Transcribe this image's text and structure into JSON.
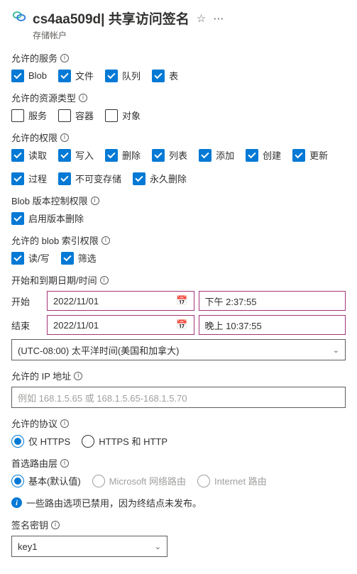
{
  "header": {
    "account_id": "cs4aa509d",
    "page_title": "共享访问签名",
    "subtitle": "存储帐户"
  },
  "services": {
    "label": "允许的服务",
    "items": [
      {
        "label": "Blob",
        "checked": true
      },
      {
        "label": "文件",
        "checked": true
      },
      {
        "label": "队列",
        "checked": true
      },
      {
        "label": "表",
        "checked": true
      }
    ]
  },
  "resource_types": {
    "label": "允许的资源类型",
    "items": [
      {
        "label": "服务",
        "checked": false
      },
      {
        "label": "容器",
        "checked": false
      },
      {
        "label": "对象",
        "checked": false
      }
    ]
  },
  "permissions": {
    "label": "允许的权限",
    "items": [
      {
        "label": "读取",
        "checked": true
      },
      {
        "label": "写入",
        "checked": true
      },
      {
        "label": "删除",
        "checked": true
      },
      {
        "label": "列表",
        "checked": true
      },
      {
        "label": "添加",
        "checked": true
      },
      {
        "label": "创建",
        "checked": true
      },
      {
        "label": "更新",
        "checked": true
      },
      {
        "label": "过程",
        "checked": true
      },
      {
        "label": "不可变存储",
        "checked": true
      },
      {
        "label": "永久删除",
        "checked": true
      }
    ]
  },
  "blob_version": {
    "label": "Blob 版本控制权限",
    "items": [
      {
        "label": "启用版本删除",
        "checked": true
      }
    ]
  },
  "blob_index": {
    "label": "允许的 blob 索引权限",
    "items": [
      {
        "label": "读/写",
        "checked": true
      },
      {
        "label": "筛选",
        "checked": true
      }
    ]
  },
  "datetime": {
    "label": "开始和到期日期/时间",
    "start_label": "开始",
    "start_date": "2022/11/01",
    "start_time": "下午 2:37:55",
    "end_label": "结束",
    "end_date": "2022/11/01",
    "end_time": "晚上 10:37:55",
    "timezone": "(UTC-08:00) 太平洋时间(美国和加拿大)"
  },
  "ip": {
    "label": "允许的 IP 地址",
    "placeholder": "例如 168.1.5.65 或 168.1.5.65-168.1.5.70"
  },
  "protocol": {
    "label": "允许的协议",
    "options": [
      {
        "label": "仅 HTTPS",
        "selected": true,
        "disabled": false
      },
      {
        "label": "HTTPS 和 HTTP",
        "selected": false,
        "disabled": false
      }
    ]
  },
  "routing": {
    "label": "首选路由层",
    "options": [
      {
        "label": "基本(默认值)",
        "selected": true,
        "disabled": false
      },
      {
        "label": "Microsoft 网络路由",
        "selected": false,
        "disabled": true
      },
      {
        "label": "Internet 路由",
        "selected": false,
        "disabled": true
      }
    ],
    "note": "一些路由选项已禁用，因为终结点未发布。"
  },
  "signing_key": {
    "label": "签名密钥",
    "value": "key1"
  }
}
